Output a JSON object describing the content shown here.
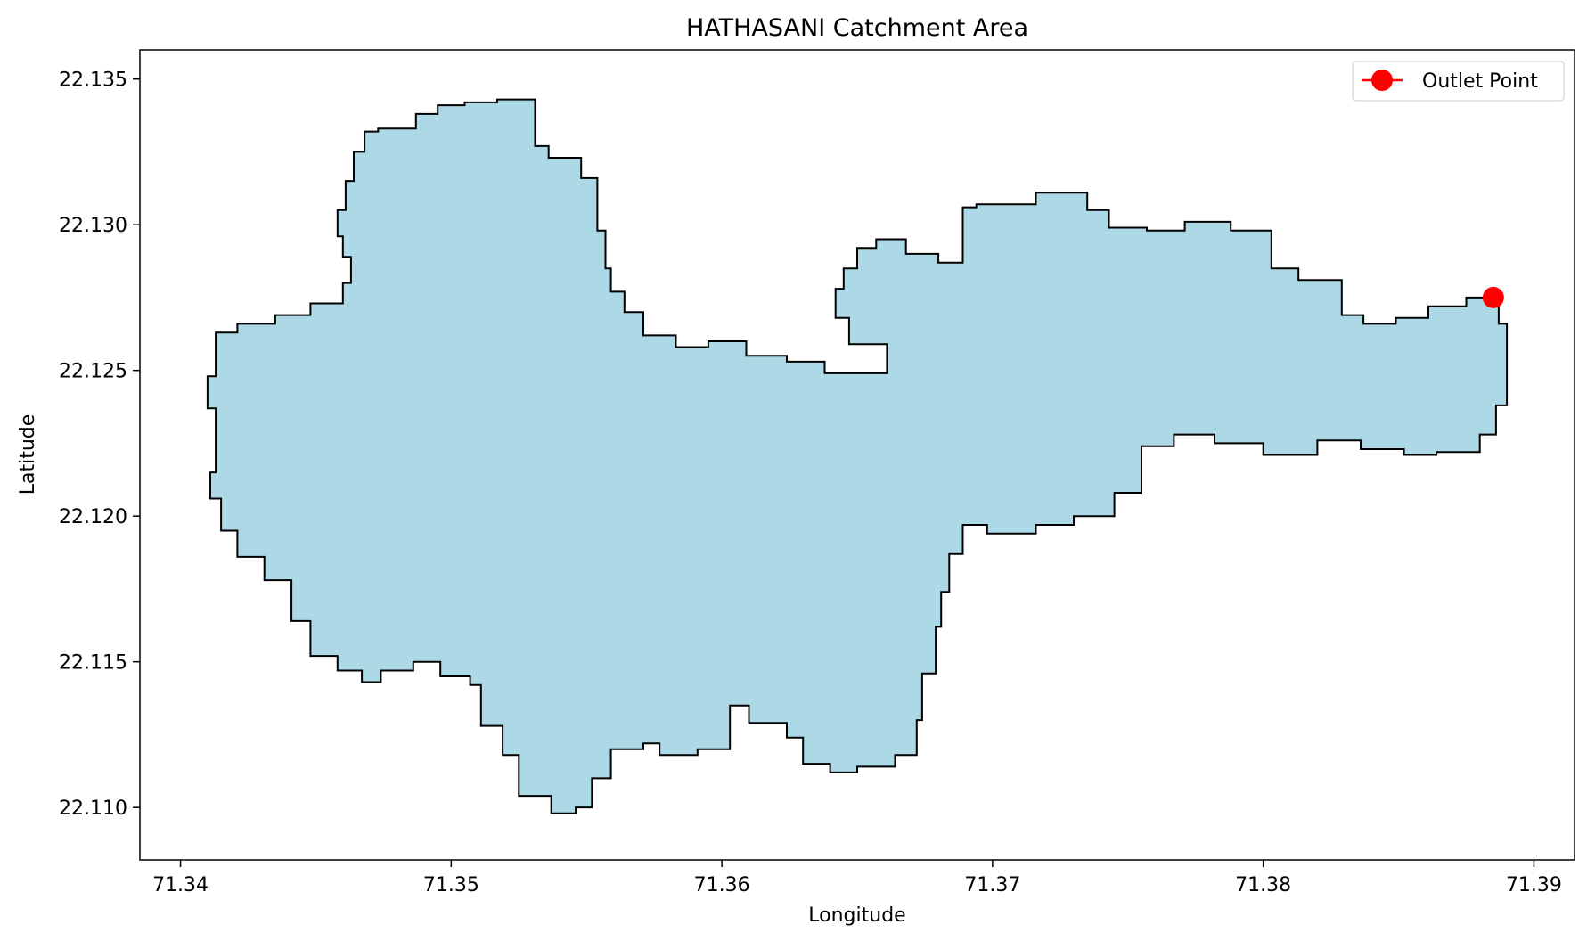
{
  "chart_data": {
    "type": "map",
    "title": "HATHASANI Catchment Area",
    "xlabel": "Longitude",
    "ylabel": "Latitude",
    "xlim": [
      71.3385,
      71.3915
    ],
    "ylim": [
      22.1082,
      22.136
    ],
    "grid": false,
    "x_ticks": [
      71.34,
      71.35,
      71.36,
      71.37,
      71.38,
      71.39
    ],
    "x_tick_labels": [
      "71.34",
      "71.35",
      "71.36",
      "71.37",
      "71.38",
      "71.39"
    ],
    "y_ticks": [
      22.11,
      22.115,
      22.12,
      22.125,
      22.13,
      22.135
    ],
    "y_tick_labels": [
      "22.110",
      "22.115",
      "22.120",
      "22.125",
      "22.130",
      "22.135"
    ],
    "legend": {
      "placement": "top-right",
      "entries": [
        "Outlet Point"
      ]
    },
    "colors": {
      "catchment_fill": "#add8e6",
      "catchment_edge": "#000000",
      "outlet": "#ff0000"
    },
    "outlet_point": {
      "name": "Outlet Point",
      "lon": 71.3885,
      "lat": 22.1275
    },
    "catchment_boundary": [
      [
        71.341,
        22.1237
      ],
      [
        71.3413,
        22.1233
      ],
      [
        71.3413,
        22.1215
      ],
      [
        71.3411,
        22.1206
      ],
      [
        71.3415,
        22.1195
      ],
      [
        71.3421,
        22.1186
      ],
      [
        71.3431,
        22.1178
      ],
      [
        71.3441,
        22.1164
      ],
      [
        71.3448,
        22.1152
      ],
      [
        71.3458,
        22.1147
      ],
      [
        71.3467,
        22.1143
      ],
      [
        71.3474,
        22.1147
      ],
      [
        71.3486,
        22.115
      ],
      [
        71.3496,
        22.1145
      ],
      [
        71.3507,
        22.1142
      ],
      [
        71.3511,
        22.1128
      ],
      [
        71.3519,
        22.1118
      ],
      [
        71.3525,
        22.1104
      ],
      [
        71.3537,
        22.1098
      ],
      [
        71.3546,
        22.11
      ],
      [
        71.3552,
        22.111
      ],
      [
        71.3559,
        22.112
      ],
      [
        71.3571,
        22.1122
      ],
      [
        71.3577,
        22.1118
      ],
      [
        71.3591,
        22.112
      ],
      [
        71.3603,
        22.1135
      ],
      [
        71.361,
        22.1129
      ],
      [
        71.3624,
        22.1124
      ],
      [
        71.363,
        22.1115
      ],
      [
        71.364,
        22.1112
      ],
      [
        71.365,
        22.1114
      ],
      [
        71.3664,
        22.1118
      ],
      [
        71.3672,
        22.113
      ],
      [
        71.3674,
        22.1146
      ],
      [
        71.3679,
        22.1162
      ],
      [
        71.3681,
        22.1174
      ],
      [
        71.3684,
        22.1187
      ],
      [
        71.3689,
        22.1197
      ],
      [
        71.3698,
        22.1194
      ],
      [
        71.3716,
        22.1197
      ],
      [
        71.373,
        22.12
      ],
      [
        71.3745,
        22.1208
      ],
      [
        71.3755,
        22.1224
      ],
      [
        71.3767,
        22.1228
      ],
      [
        71.3782,
        22.1225
      ],
      [
        71.38,
        22.1221
      ],
      [
        71.382,
        22.1226
      ],
      [
        71.3836,
        22.1223
      ],
      [
        71.3852,
        22.1221
      ],
      [
        71.3864,
        22.1222
      ],
      [
        71.388,
        22.1228
      ],
      [
        71.3886,
        22.1238
      ],
      [
        71.389,
        22.1252
      ],
      [
        71.389,
        22.1266
      ],
      [
        71.3887,
        22.1275
      ],
      [
        71.3875,
        22.1272
      ],
      [
        71.3861,
        22.1268
      ],
      [
        71.3849,
        22.1266
      ],
      [
        71.3837,
        22.1269
      ],
      [
        71.3829,
        22.1281
      ],
      [
        71.3813,
        22.1285
      ],
      [
        71.3803,
        22.1298
      ],
      [
        71.3788,
        22.1301
      ],
      [
        71.3771,
        22.1298
      ],
      [
        71.3757,
        22.1299
      ],
      [
        71.3743,
        22.1305
      ],
      [
        71.3735,
        22.1311
      ],
      [
        71.3716,
        22.1307
      ],
      [
        71.3694,
        22.1306
      ],
      [
        71.3689,
        22.1302
      ],
      [
        71.3689,
        22.1287
      ],
      [
        71.368,
        22.129
      ],
      [
        71.3668,
        22.1295
      ],
      [
        71.3657,
        22.1292
      ],
      [
        71.365,
        22.1285
      ],
      [
        71.3645,
        22.1278
      ],
      [
        71.3642,
        22.1268
      ],
      [
        71.3647,
        22.1259
      ],
      [
        71.3661,
        22.1249
      ],
      [
        71.365,
        22.1249
      ],
      [
        71.3638,
        22.1253
      ],
      [
        71.3624,
        22.1255
      ],
      [
        71.3609,
        22.126
      ],
      [
        71.3595,
        22.1258
      ],
      [
        71.3583,
        22.1262
      ],
      [
        71.3571,
        22.127
      ],
      [
        71.3564,
        22.1277
      ],
      [
        71.3559,
        22.1285
      ],
      [
        71.3557,
        22.1298
      ],
      [
        71.3554,
        22.1304
      ],
      [
        71.3554,
        22.1316
      ],
      [
        71.3548,
        22.1323
      ],
      [
        71.3536,
        22.1327
      ],
      [
        71.3531,
        22.1343
      ],
      [
        71.3517,
        22.1342
      ],
      [
        71.3505,
        22.1341
      ],
      [
        71.3495,
        22.1338
      ],
      [
        71.3487,
        22.1333
      ],
      [
        71.3473,
        22.1332
      ],
      [
        71.3468,
        22.1325
      ],
      [
        71.3464,
        22.1315
      ],
      [
        71.3461,
        22.1305
      ],
      [
        71.3458,
        22.1296
      ],
      [
        71.346,
        22.1289
      ],
      [
        71.3463,
        22.128
      ],
      [
        71.346,
        22.1273
      ],
      [
        71.3448,
        22.1269
      ],
      [
        71.3435,
        22.1266
      ],
      [
        71.3421,
        22.1263
      ],
      [
        71.3413,
        22.1259
      ],
      [
        71.3413,
        22.1248
      ],
      [
        71.341,
        22.124
      ]
    ]
  }
}
